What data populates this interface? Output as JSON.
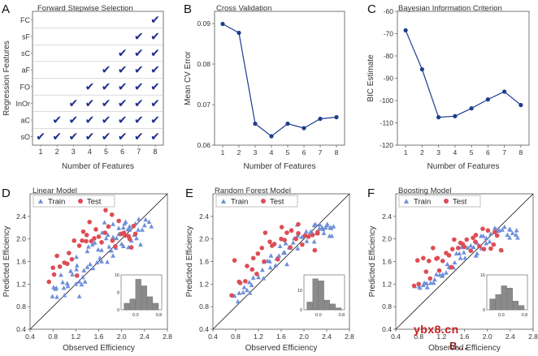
{
  "colors": {
    "axis": "#555555",
    "line": "#1e3d8f",
    "check": "#1e2d8c",
    "train": "#6f8fd8",
    "test": "#dd4d55",
    "grid": "#b9b9b9",
    "hist": "#8a8a8a",
    "watermark_red": "#c8201f",
    "watermark_dark": "#7f1f1f"
  },
  "watermark": {
    "main": "ybx8.cn",
    "sub": "B..."
  },
  "chart_data": [
    {
      "id": "A",
      "panel_label": "A",
      "type": "table",
      "title": "Forward Stepwise Selection",
      "xlabel": "Number of Features",
      "ylabel": "Regression Features",
      "x_ticks": [
        "1",
        "2",
        "3",
        "4",
        "5",
        "6",
        "7",
        "8"
      ],
      "rows": [
        "FC",
        "sF",
        "sC",
        "aF",
        "FO",
        "InOr",
        "aC",
        "sO"
      ],
      "selected_from": [
        8,
        7,
        6,
        5,
        4,
        3,
        2,
        1
      ],
      "cell_value": "✔"
    },
    {
      "id": "B",
      "panel_label": "B",
      "type": "line",
      "title": "Cross Validation",
      "xlabel": "Number of Features",
      "ylabel": "Mean CV Error",
      "x": [
        1,
        2,
        3,
        4,
        5,
        6,
        7,
        8
      ],
      "y": [
        0.0899,
        0.0877,
        0.0653,
        0.0622,
        0.0653,
        0.0642,
        0.0665,
        0.0669
      ],
      "xlim": [
        0.5,
        8.5
      ],
      "ylim": [
        0.06,
        0.093
      ],
      "x_ticks": [
        1,
        2,
        3,
        4,
        5,
        6,
        7,
        8
      ],
      "y_ticks": [
        0.06,
        0.07,
        0.08,
        0.09
      ],
      "x_tick_labels": [
        "1",
        "2",
        "3",
        "4",
        "5",
        "6",
        "7",
        "8"
      ],
      "y_tick_labels": [
        "0.06",
        "0.07",
        "0.08",
        "0.09"
      ]
    },
    {
      "id": "C",
      "panel_label": "C",
      "type": "line",
      "title": "Bayesian Information Criterion",
      "xlabel": "Number of Features",
      "ylabel": "BIC Estimate",
      "x": [
        1,
        2,
        3,
        4,
        5,
        6,
        7,
        8
      ],
      "y": [
        -68.5,
        -86,
        -107.5,
        -107,
        -103.5,
        -99.5,
        -96,
        -102
      ],
      "xlim": [
        0.5,
        8.5
      ],
      "ylim": [
        -120,
        -60
      ],
      "x_ticks": [
        1,
        2,
        3,
        4,
        5,
        6,
        7,
        8
      ],
      "y_ticks": [
        -120,
        -110,
        -100,
        -90,
        -80,
        -70,
        -60
      ],
      "x_tick_labels": [
        "1",
        "2",
        "3",
        "4",
        "5",
        "6",
        "7",
        "8"
      ],
      "y_tick_labels": [
        "-120",
        "-110",
        "-100",
        "-90",
        "-80",
        "-70",
        "-60"
      ]
    },
    {
      "id": "D",
      "panel_label": "D",
      "type": "scatter",
      "title": "Linear Model",
      "xlabel": "Observed Efficiency",
      "ylabel": "Predicted Efficiency",
      "xlim": [
        0.4,
        2.8
      ],
      "ylim": [
        0.4,
        2.8
      ],
      "x_ticks": [
        0.4,
        0.8,
        1.2,
        1.6,
        2.0,
        2.4,
        2.8
      ],
      "y_ticks": [
        0.4,
        0.8,
        1.2,
        1.6,
        2.0,
        2.4
      ],
      "x_tick_labels": [
        "0.4",
        "0.8",
        "1.2",
        "1.6",
        "2.0",
        "2.4",
        "2.8"
      ],
      "y_tick_labels": [
        "0.4",
        "0.8",
        "1.2",
        "1.6",
        "2.0",
        "2.4"
      ],
      "legend": [
        "Train",
        "Test"
      ],
      "series": [
        {
          "name": "Train",
          "x": [
            0.79,
            0.81,
            0.84,
            0.87,
            0.86,
            0.94,
            0.99,
            0.97,
            1.05,
            1.11,
            1.14,
            1.06,
            1.2,
            1.21,
            1.21,
            1.26,
            1.22,
            1.3,
            1.34,
            1.36,
            1.4,
            1.4,
            1.45,
            1.42,
            1.49,
            1.5,
            1.57,
            1.59,
            1.62,
            1.65,
            1.66,
            1.65,
            1.73,
            1.75,
            1.76,
            1.78,
            1.82,
            1.85,
            1.85,
            1.9,
            1.91,
            1.95,
            1.95,
            2.0,
            2.03,
            2.05,
            2.03,
            2.07,
            2.11,
            2.14,
            2.17,
            2.14,
            2.22,
            2.24,
            2.26,
            2.29,
            2.3,
            2.36,
            2.42,
            2.4,
            1.32,
            1.53,
            1.7,
            2.12,
            1.0,
            2.48,
            2.52,
            1.26,
            1.85,
            2.33
          ],
          "y": [
            0.98,
            1.14,
            1.11,
            0.97,
            1.13,
            1.36,
            1.13,
            1.23,
            1.21,
            1.43,
            1.37,
            1.16,
            1.2,
            1.46,
            1.68,
            1.24,
            1.53,
            1.19,
            1.44,
            1.24,
            1.5,
            1.78,
            1.55,
            1.86,
            1.9,
            1.48,
            1.58,
            1.81,
            1.66,
            1.8,
            2.11,
            1.6,
            2.01,
            1.59,
            2.07,
            1.86,
            1.79,
            1.7,
            2.03,
            1.84,
            2.01,
            2.19,
            2.08,
            1.91,
            2.2,
            2.27,
            1.87,
            2.3,
            2.17,
            2.22,
            1.97,
            2.16,
            2.07,
            2.27,
            2.01,
            2.16,
            2.35,
            2.16,
            2.34,
            2.24,
            1.32,
            1.93,
            2.29,
            1.85,
            1.0,
            2.3,
            2.22,
            0.98,
            2.26,
            1.9
          ]
        },
        {
          "name": "Test",
          "x": [
            0.73,
            0.8,
            0.82,
            0.87,
            0.92,
            1.0,
            1.05,
            1.08,
            1.13,
            1.17,
            1.22,
            1.26,
            1.31,
            1.33,
            1.38,
            1.39,
            1.44,
            1.47,
            1.52,
            1.55,
            1.6,
            1.65,
            1.71,
            1.72,
            1.77,
            1.83,
            1.84,
            1.89,
            1.95,
            1.99,
            2.04,
            2.06,
            2.12,
            2.14,
            2.17,
            2.21,
            2.24
          ],
          "y": [
            1.24,
            1.49,
            1.37,
            1.7,
            1.51,
            1.58,
            1.56,
            1.75,
            1.64,
            1.97,
            1.35,
            1.88,
            1.97,
            2.13,
            1.96,
            2.07,
            2.3,
            1.96,
            2.01,
            2.17,
            2.04,
            1.94,
            2.11,
            2.51,
            2.22,
            2.43,
            1.97,
            1.87,
            2.32,
            2.09,
            2.11,
            2.06,
            2.05,
            2.0,
            1.85,
            2.23,
            2.09
          ]
        }
      ],
      "inset_histogram": {
        "x_tick_labels": [
          "0.0",
          "0.8"
        ],
        "y_tick_labels": [
          "0",
          "8",
          "16"
        ],
        "ylim": [
          0,
          16
        ],
        "bins": [
          -0.4,
          -0.2,
          0.0,
          0.2,
          0.4,
          0.6,
          0.8
        ],
        "counts": [
          3,
          5,
          14,
          11,
          6,
          3
        ]
      }
    },
    {
      "id": "E",
      "panel_label": "E",
      "type": "scatter",
      "title": "Random Forest Model",
      "xlabel": "Observed Efficiency",
      "ylabel": "Predicted Efficiency",
      "xlim": [
        0.4,
        2.8
      ],
      "ylim": [
        0.4,
        2.8
      ],
      "x_ticks": [
        0.4,
        0.8,
        1.2,
        1.6,
        2.0,
        2.4,
        2.8
      ],
      "y_ticks": [
        0.4,
        0.8,
        1.2,
        1.6,
        2.0,
        2.4
      ],
      "x_tick_labels": [
        "0.4",
        "0.8",
        "1.2",
        "1.6",
        "2.0",
        "2.4",
        "2.8"
      ],
      "y_tick_labels": [
        "0.4",
        "0.8",
        "1.2",
        "1.6",
        "2.0",
        "2.4"
      ],
      "legend": [
        "Train",
        "Test"
      ],
      "series": [
        {
          "name": "Train",
          "x": [
            0.78,
            0.84,
            0.86,
            0.95,
            1.0,
            1.04,
            1.08,
            1.11,
            1.18,
            1.2,
            1.27,
            1.29,
            1.3,
            1.36,
            1.41,
            1.42,
            1.5,
            1.52,
            1.56,
            1.58,
            1.64,
            1.66,
            1.68,
            1.74,
            1.76,
            1.81,
            1.83,
            1.89,
            1.89,
            1.96,
            1.99,
            2.04,
            2.05,
            2.11,
            2.13,
            2.18,
            2.22,
            2.27,
            2.28,
            2.34,
            2.38,
            2.41,
            2.46,
            2.49,
            2.48,
            2.52,
            1.4,
            1.88,
            2.32,
            0.93,
            1.7,
            2.18,
            2.45,
            1.05,
            2.4,
            2.35,
            2.2
          ],
          "y": [
            0.99,
            0.89,
            1.04,
            1.14,
            1.09,
            1.23,
            1.18,
            1.31,
            1.38,
            1.32,
            1.45,
            1.3,
            1.59,
            1.61,
            1.49,
            1.7,
            1.53,
            1.65,
            1.7,
            1.87,
            1.75,
            1.76,
            1.92,
            1.85,
            1.84,
            1.93,
            2.01,
            1.83,
            2.06,
            2.03,
            2.04,
            2.13,
            1.96,
            2.11,
            2.13,
            2.24,
            2.1,
            2.18,
            2.25,
            2.17,
            2.2,
            2.26,
            2.2,
            2.05,
            2.19,
            2.22,
            1.6,
            2.25,
            2.2,
            1.05,
            1.55,
            1.95,
            2.05,
            1.04,
            2.24,
            2.1,
            2.26
          ]
        },
        {
          "name": "Test",
          "x": [
            0.73,
            0.78,
            0.86,
            0.88,
            0.97,
            1.0,
            1.09,
            1.11,
            1.17,
            1.19,
            1.26,
            1.3,
            1.32,
            1.4,
            1.44,
            1.48,
            1.54,
            1.6,
            1.61,
            1.66,
            1.7,
            1.76,
            1.78,
            1.86,
            1.9,
            1.9,
            1.97,
            2.02,
            2.08,
            2.15,
            2.19,
            2.24,
            2.24
          ],
          "y": [
            1.0,
            1.62,
            1.24,
            1.22,
            1.25,
            1.52,
            1.46,
            1.66,
            1.38,
            1.74,
            1.84,
            1.6,
            2.11,
            1.95,
            1.88,
            1.91,
            1.64,
            2.0,
            2.21,
            1.98,
            2.11,
            1.85,
            2.15,
            2.0,
            2.1,
            2.26,
            1.9,
            2.06,
            2.04,
            2.07,
            1.8,
            2.1,
            2.12
          ]
        }
      ],
      "inset_histogram": {
        "x_tick_labels": [
          "0.0",
          "0.8"
        ],
        "y_tick_labels": [
          "0",
          "10"
        ],
        "ylim": [
          0,
          18
        ],
        "bins": [
          -0.4,
          -0.2,
          0.0,
          0.2,
          0.4,
          0.6,
          0.8
        ],
        "counts": [
          4,
          16,
          15,
          5,
          3,
          1
        ]
      }
    },
    {
      "id": "F",
      "panel_label": "F",
      "type": "scatter",
      "title": "Boosting Model",
      "xlabel": "Observed Efficiency",
      "ylabel": "Predicted Efficiency",
      "xlim": [
        0.4,
        2.8
      ],
      "ylim": [
        0.4,
        2.8
      ],
      "x_ticks": [
        0.4,
        0.8,
        1.2,
        1.6,
        2.0,
        2.4,
        2.8
      ],
      "y_ticks": [
        0.4,
        0.8,
        1.2,
        1.6,
        2.0,
        2.4
      ],
      "x_tick_labels": [
        "0.4",
        "0.8",
        "1.2",
        "1.6",
        "2.0",
        "2.4",
        "2.8"
      ],
      "y_tick_labels": [
        "0.4",
        "0.8",
        "1.2",
        "1.6",
        "2.0",
        "2.4"
      ],
      "legend": [
        "Train",
        "Test"
      ],
      "series": [
        {
          "name": "Train",
          "x": [
            0.73,
            0.81,
            0.82,
            0.88,
            0.94,
            0.95,
            1.01,
            1.06,
            1.08,
            1.11,
            1.17,
            1.21,
            1.22,
            1.28,
            1.33,
            1.36,
            1.41,
            1.43,
            1.46,
            1.51,
            1.53,
            1.59,
            1.61,
            1.66,
            1.71,
            1.72,
            1.76,
            1.82,
            1.82,
            1.89,
            1.9,
            1.93,
            1.98,
            2.04,
            2.06,
            2.13,
            2.15,
            2.18,
            2.21,
            2.26,
            2.3,
            2.35,
            2.39,
            2.39,
            2.44,
            2.5,
            2.51,
            2.53,
            1.55,
            1.98,
            2.25,
            0.9,
            1.3,
            1.8,
            2.4
          ],
          "y": [
            1.16,
            1.16,
            1.13,
            1.18,
            1.21,
            1.14,
            1.22,
            1.22,
            1.28,
            1.37,
            1.36,
            1.34,
            1.37,
            1.4,
            1.5,
            1.49,
            1.49,
            1.58,
            1.74,
            1.74,
            1.66,
            1.76,
            1.66,
            1.84,
            1.88,
            1.8,
            1.85,
            1.93,
            1.74,
            2.05,
            1.83,
            2.05,
            2.01,
            1.95,
            2.09,
            2.19,
            2.17,
            2.14,
            2.15,
            2.16,
            2.21,
            2.07,
            2.17,
            2.02,
            2.1,
            2.07,
            2.15,
            2.02,
            1.85,
            1.92,
            1.8,
            1.22,
            1.55,
            1.7,
            2.16
          ]
        },
        {
          "name": "Test",
          "x": [
            0.72,
            0.78,
            0.8,
            0.88,
            0.93,
            0.98,
            1.0,
            1.05,
            1.11,
            1.13,
            1.16,
            1.22,
            1.28,
            1.33,
            1.37,
            1.39,
            1.42,
            1.49,
            1.53,
            1.57,
            1.6,
            1.64,
            1.71,
            1.75,
            1.79,
            1.8,
            1.86,
            1.92,
            1.94,
            2.01,
            2.06,
            2.11,
            2.13,
            2.17,
            2.24
          ],
          "y": [
            1.17,
            1.62,
            1.2,
            1.66,
            1.42,
            1.61,
            1.3,
            1.84,
            1.65,
            1.66,
            1.44,
            1.61,
            1.75,
            1.71,
            1.5,
            1.82,
            1.99,
            1.84,
            1.93,
            1.91,
            1.86,
            1.99,
            1.79,
            2.02,
            1.95,
            2.07,
            1.87,
            2.18,
            1.82,
            2.15,
            1.83,
            1.9,
            2.12,
            2.06,
            1.8
          ]
        }
      ],
      "inset_histogram": {
        "x_tick_labels": [
          "0.0",
          "0.8"
        ],
        "y_tick_labels": [
          "0",
          "16"
        ],
        "ylim": [
          0,
          16
        ],
        "bins": [
          -0.4,
          -0.2,
          0.0,
          0.2,
          0.4,
          0.6,
          0.8
        ],
        "counts": [
          5,
          7,
          11,
          10,
          4,
          2
        ]
      }
    }
  ]
}
